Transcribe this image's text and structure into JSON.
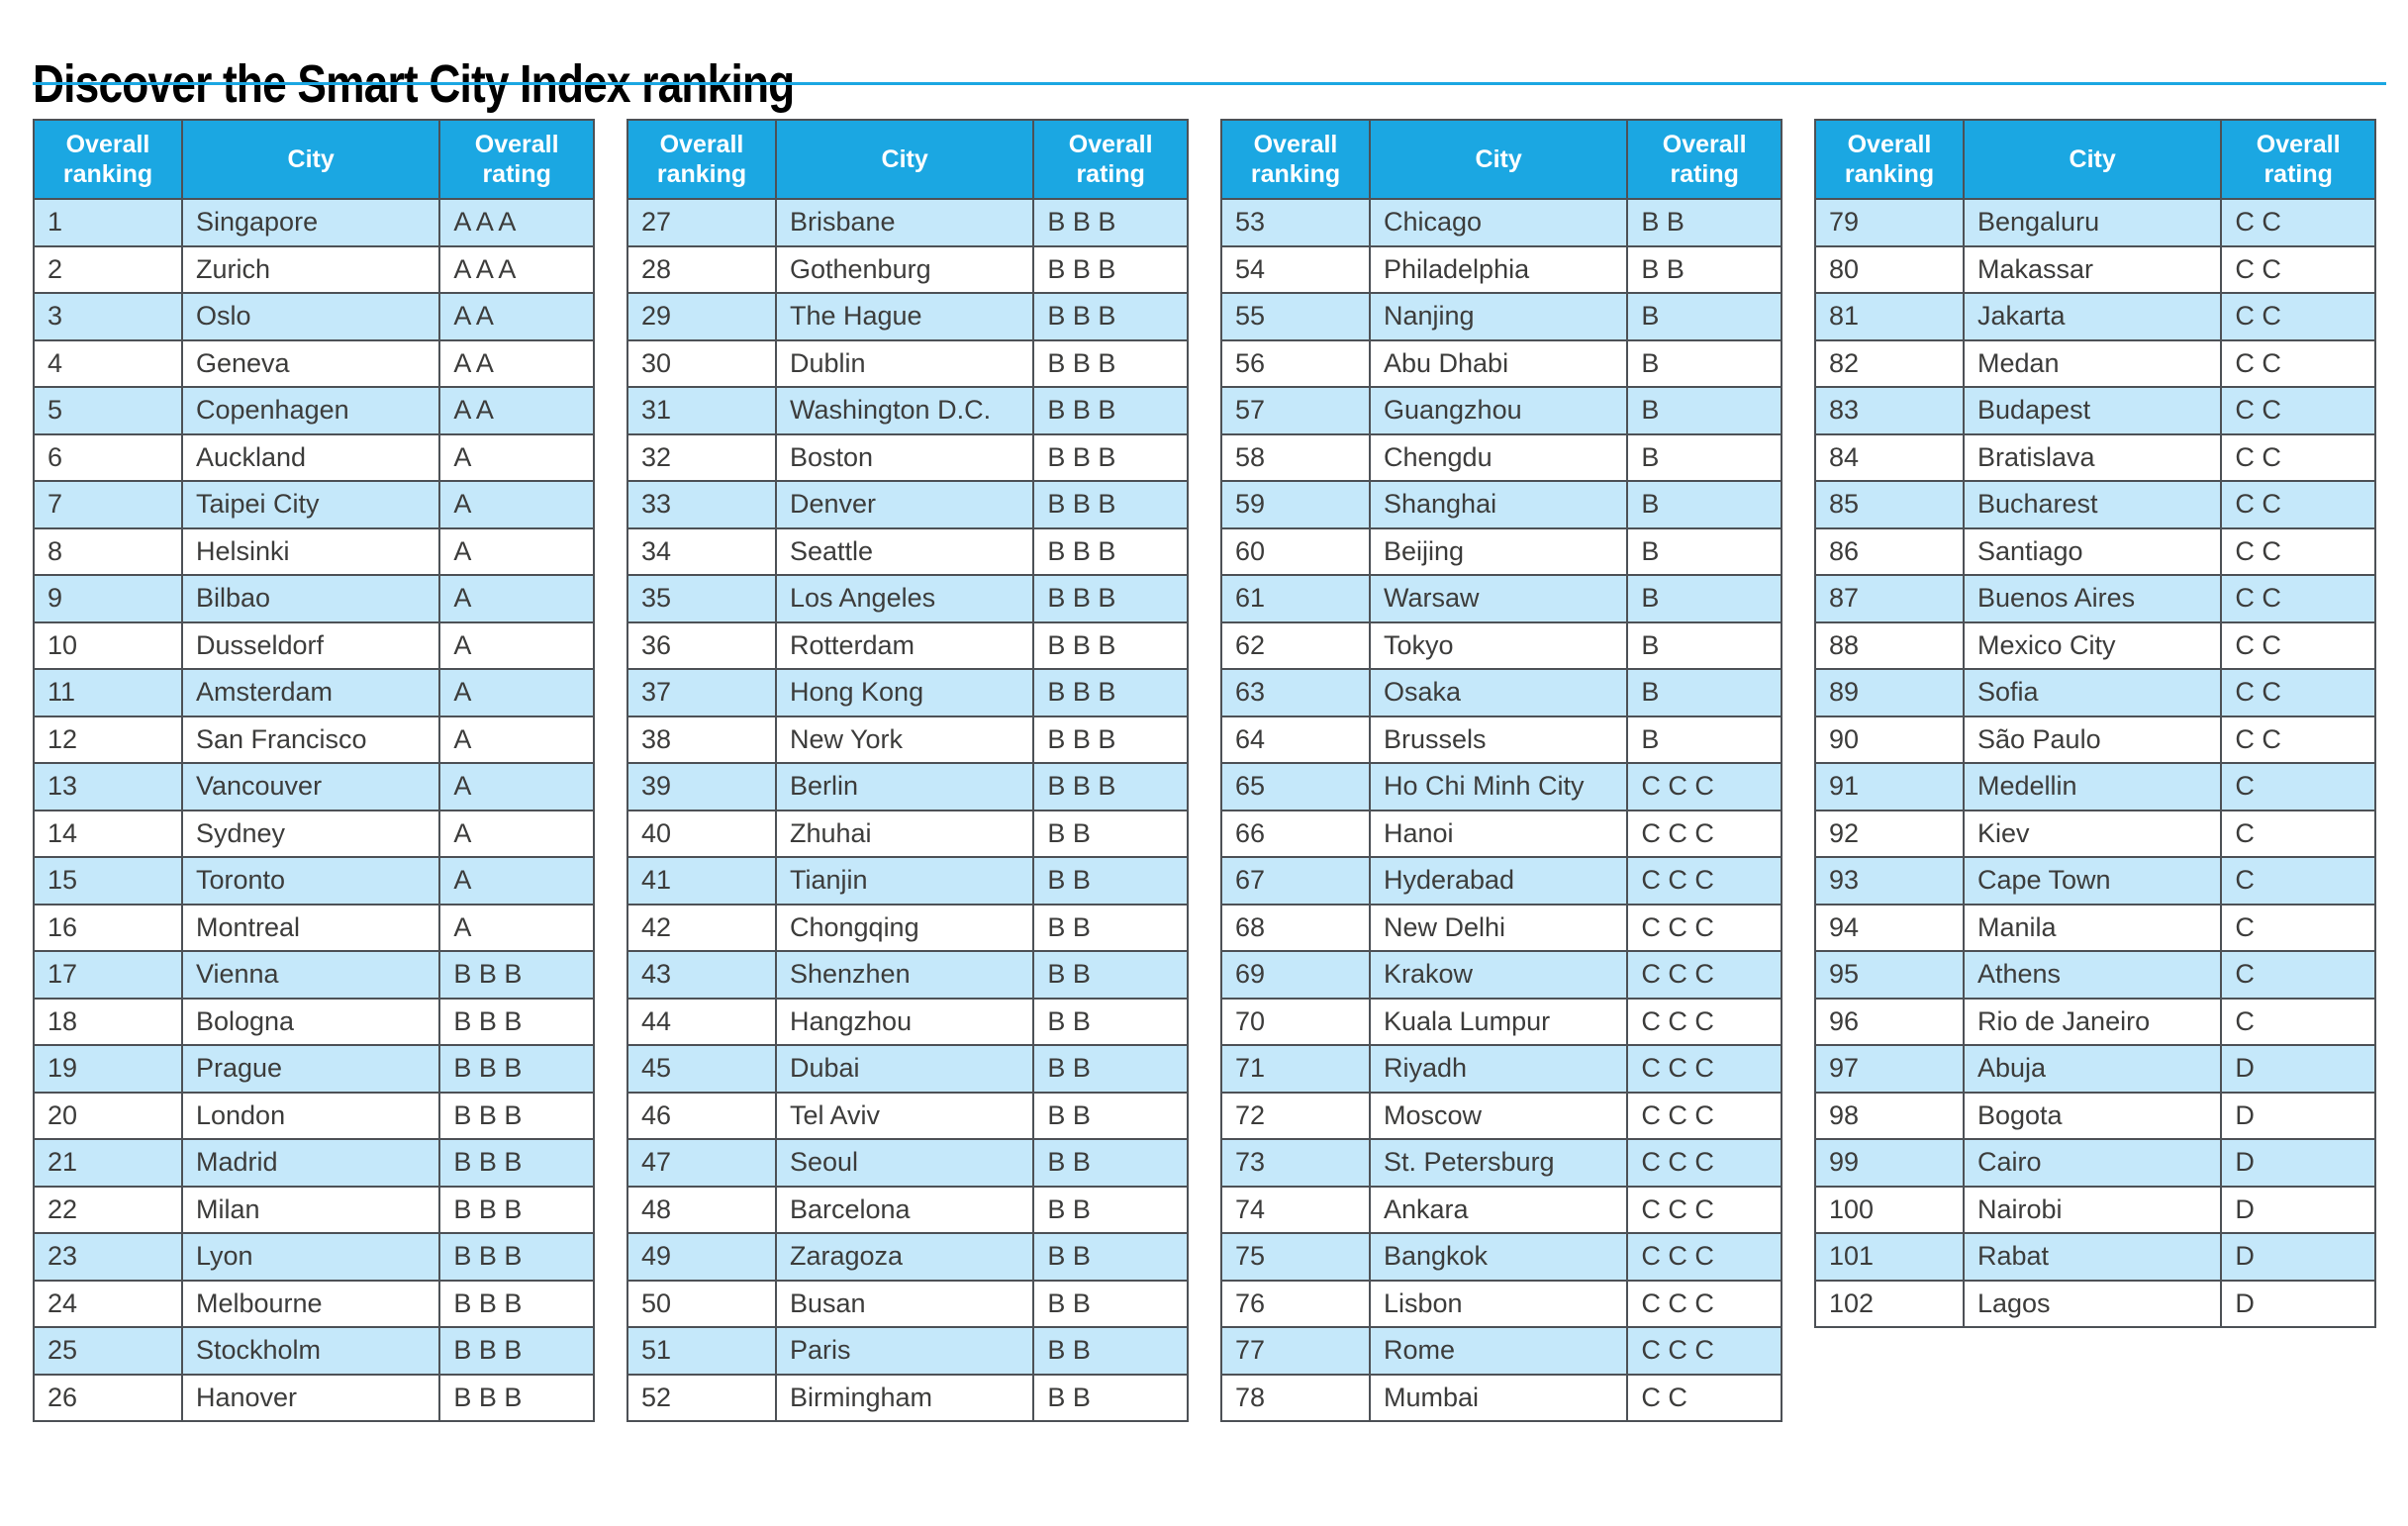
{
  "page_title": "Discover the Smart City Index ranking",
  "colors": {
    "accent": "#1BA7E2",
    "row_alt": "#C5E8FA",
    "border": "#4D5156",
    "text": "#3C3C3B",
    "header_text": "#FFFFFF"
  },
  "table_headers": [
    "Overall ranking",
    "City",
    "Overall rating"
  ],
  "tables": [
    {
      "rows": [
        [
          "1",
          "Singapore",
          "A A A"
        ],
        [
          "2",
          "Zurich",
          "A A A"
        ],
        [
          "3",
          "Oslo",
          "A A"
        ],
        [
          "4",
          "Geneva",
          "A A"
        ],
        [
          "5",
          "Copenhagen",
          "A A"
        ],
        [
          "6",
          "Auckland",
          "A"
        ],
        [
          "7",
          "Taipei City",
          "A"
        ],
        [
          "8",
          "Helsinki",
          "A"
        ],
        [
          "9",
          "Bilbao",
          "A"
        ],
        [
          "10",
          "Dusseldorf",
          "A"
        ],
        [
          "11",
          "Amsterdam",
          "A"
        ],
        [
          "12",
          "San Francisco",
          "A"
        ],
        [
          "13",
          "Vancouver",
          "A"
        ],
        [
          "14",
          "Sydney",
          "A"
        ],
        [
          "15",
          "Toronto",
          "A"
        ],
        [
          "16",
          "Montreal",
          "A"
        ],
        [
          "17",
          "Vienna",
          "B B B"
        ],
        [
          "18",
          "Bologna",
          "B B B"
        ],
        [
          "19",
          "Prague",
          "B B B"
        ],
        [
          "20",
          "London",
          "B B B"
        ],
        [
          "21",
          "Madrid",
          "B B B"
        ],
        [
          "22",
          "Milan",
          "B B B"
        ],
        [
          "23",
          "Lyon",
          "B B B"
        ],
        [
          "24",
          "Melbourne",
          "B B B"
        ],
        [
          "25",
          "Stockholm",
          "B B B"
        ],
        [
          "26",
          "Hanover",
          "B B B"
        ]
      ]
    },
    {
      "rows": [
        [
          "27",
          "Brisbane",
          "B B B"
        ],
        [
          "28",
          "Gothenburg",
          "B B B"
        ],
        [
          "29",
          "The Hague",
          "B B B"
        ],
        [
          "30",
          "Dublin",
          "B B B"
        ],
        [
          "31",
          "Washington D.C.",
          "B B B"
        ],
        [
          "32",
          "Boston",
          "B B B"
        ],
        [
          "33",
          "Denver",
          "B B B"
        ],
        [
          "34",
          "Seattle",
          "B B B"
        ],
        [
          "35",
          "Los Angeles",
          "B B B"
        ],
        [
          "36",
          "Rotterdam",
          "B B B"
        ],
        [
          "37",
          "Hong Kong",
          "B B B"
        ],
        [
          "38",
          "New York",
          "B B B"
        ],
        [
          "39",
          "Berlin",
          "B B B"
        ],
        [
          "40",
          "Zhuhai",
          "B B"
        ],
        [
          "41",
          "Tianjin",
          "B B"
        ],
        [
          "42",
          "Chongqing",
          "B B"
        ],
        [
          "43",
          "Shenzhen",
          "B B"
        ],
        [
          "44",
          "Hangzhou",
          "B B"
        ],
        [
          "45",
          "Dubai",
          "B B"
        ],
        [
          "46",
          "Tel Aviv",
          "B B"
        ],
        [
          "47",
          "Seoul",
          "B B"
        ],
        [
          "48",
          "Barcelona",
          "B B"
        ],
        [
          "49",
          "Zaragoza",
          "B B"
        ],
        [
          "50",
          "Busan",
          "B B"
        ],
        [
          "51",
          "Paris",
          "B B"
        ],
        [
          "52",
          "Birmingham",
          "B B"
        ]
      ]
    },
    {
      "rows": [
        [
          "53",
          "Chicago",
          "B B"
        ],
        [
          "54",
          "Philadelphia",
          "B B"
        ],
        [
          "55",
          "Nanjing",
          "B"
        ],
        [
          "56",
          "Abu Dhabi",
          "B"
        ],
        [
          "57",
          "Guangzhou",
          "B"
        ],
        [
          "58",
          "Chengdu",
          "B"
        ],
        [
          "59",
          "Shanghai",
          "B"
        ],
        [
          "60",
          "Beijing",
          "B"
        ],
        [
          "61",
          "Warsaw",
          "B"
        ],
        [
          "62",
          "Tokyo",
          "B"
        ],
        [
          "63",
          "Osaka",
          "B"
        ],
        [
          "64",
          "Brussels",
          "B"
        ],
        [
          "65",
          "Ho Chi Minh City",
          "C C C"
        ],
        [
          "66",
          "Hanoi",
          "C C C"
        ],
        [
          "67",
          "Hyderabad",
          "C C C"
        ],
        [
          "68",
          "New Delhi",
          "C C C"
        ],
        [
          "69",
          "Krakow",
          "C C C"
        ],
        [
          "70",
          "Kuala Lumpur",
          "C C C"
        ],
        [
          "71",
          "Riyadh",
          "C C C"
        ],
        [
          "72",
          "Moscow",
          "C C C"
        ],
        [
          "73",
          "St. Petersburg",
          "C C C"
        ],
        [
          "74",
          "Ankara",
          "C C C"
        ],
        [
          "75",
          "Bangkok",
          "C C C"
        ],
        [
          "76",
          "Lisbon",
          "C C C"
        ],
        [
          "77",
          "Rome",
          "C C C"
        ],
        [
          "78",
          "Mumbai",
          "C C"
        ]
      ]
    },
    {
      "rows": [
        [
          "79",
          "Bengaluru",
          "C C"
        ],
        [
          "80",
          "Makassar",
          "C C"
        ],
        [
          "81",
          "Jakarta",
          "C C"
        ],
        [
          "82",
          "Medan",
          "C C"
        ],
        [
          "83",
          "Budapest",
          "C C"
        ],
        [
          "84",
          "Bratislava",
          "C C"
        ],
        [
          "85",
          "Bucharest",
          "C C"
        ],
        [
          "86",
          "Santiago",
          "C C"
        ],
        [
          "87",
          "Buenos Aires",
          "C C"
        ],
        [
          "88",
          "Mexico City",
          "C C"
        ],
        [
          "89",
          "Sofia",
          "C C"
        ],
        [
          "90",
          "São Paulo",
          "C C"
        ],
        [
          "91",
          "Medellin",
          "C"
        ],
        [
          "92",
          "Kiev",
          "C"
        ],
        [
          "93",
          "Cape Town",
          "C"
        ],
        [
          "94",
          "Manila",
          "C"
        ],
        [
          "95",
          "Athens",
          "C"
        ],
        [
          "96",
          "Rio de Janeiro",
          "C"
        ],
        [
          "97",
          "Abuja",
          "D"
        ],
        [
          "98",
          "Bogota",
          "D"
        ],
        [
          "99",
          "Cairo",
          "D"
        ],
        [
          "100",
          "Nairobi",
          "D"
        ],
        [
          "101",
          "Rabat",
          "D"
        ],
        [
          "102",
          "Lagos",
          "D"
        ]
      ]
    }
  ]
}
